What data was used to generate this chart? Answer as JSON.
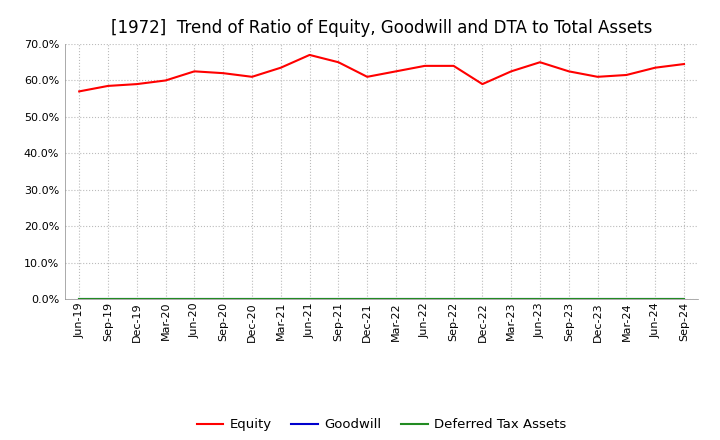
{
  "title": "[1972]  Trend of Ratio of Equity, Goodwill and DTA to Total Assets",
  "x_labels": [
    "Jun-19",
    "Sep-19",
    "Dec-19",
    "Mar-20",
    "Jun-20",
    "Sep-20",
    "Dec-20",
    "Mar-21",
    "Jun-21",
    "Sep-21",
    "Dec-21",
    "Mar-22",
    "Jun-22",
    "Sep-22",
    "Dec-22",
    "Mar-23",
    "Jun-23",
    "Sep-23",
    "Dec-23",
    "Mar-24",
    "Jun-24",
    "Sep-24"
  ],
  "equity": [
    57.0,
    58.5,
    59.0,
    60.0,
    62.5,
    62.0,
    61.0,
    63.5,
    67.0,
    65.0,
    61.0,
    62.5,
    64.0,
    64.0,
    59.0,
    62.5,
    65.0,
    62.5,
    61.0,
    61.5,
    63.5,
    64.5
  ],
  "goodwill": [
    0,
    0,
    0,
    0,
    0,
    0,
    0,
    0,
    0,
    0,
    0,
    0,
    0,
    0,
    0,
    0,
    0,
    0,
    0,
    0,
    0,
    0
  ],
  "dta": [
    0,
    0,
    0,
    0,
    0,
    0,
    0,
    0,
    0,
    0,
    0,
    0,
    0,
    0,
    0,
    0,
    0,
    0,
    0,
    0,
    0,
    0
  ],
  "equity_color": "#ff0000",
  "goodwill_color": "#0000cd",
  "dta_color": "#228b22",
  "ylim": [
    0.0,
    70.0
  ],
  "yticks": [
    0.0,
    10.0,
    20.0,
    30.0,
    40.0,
    50.0,
    60.0,
    70.0
  ],
  "background_color": "#ffffff",
  "grid_color": "#bbbbbb",
  "title_fontsize": 12,
  "tick_fontsize": 8,
  "legend_fontsize": 9.5
}
